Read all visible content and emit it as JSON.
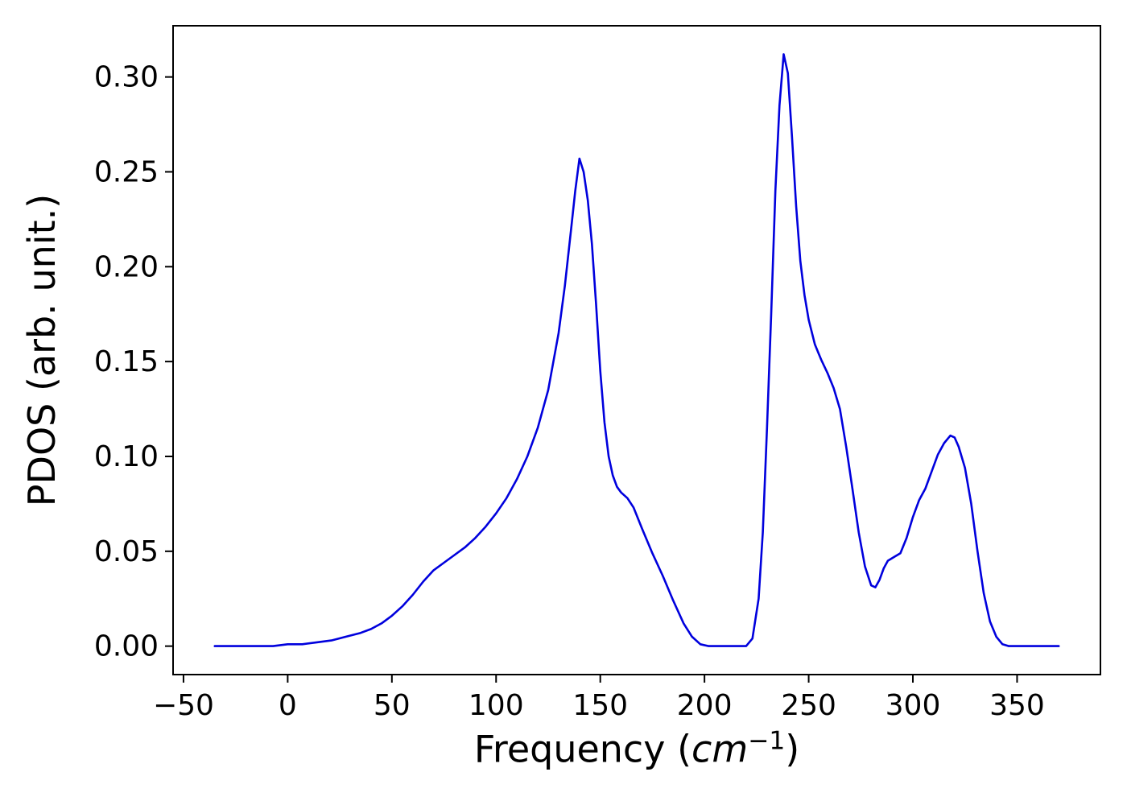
{
  "figure": {
    "ylabel_text": "PDOS (arb. unit.)",
    "xlabel_prefix": "Frequency (",
    "xlabel_italic": "cm",
    "xlabel_sup": "−1",
    "xlabel_suffix": ")"
  },
  "chart_data": {
    "type": "line",
    "title": "",
    "xlabel": "Frequency (cm^-1)",
    "ylabel": "PDOS (arb. unit.)",
    "xlim": [
      -55,
      390
    ],
    "ylim": [
      -0.015,
      0.327
    ],
    "grid": false,
    "legend": "none",
    "line_color": "#0000dd",
    "x_ticks": [
      -50,
      0,
      50,
      100,
      150,
      200,
      250,
      300,
      350
    ],
    "x_tick_labels": [
      "−50",
      "0",
      "50",
      "100",
      "150",
      "200",
      "250",
      "300",
      "350"
    ],
    "y_ticks": [
      0.0,
      0.05,
      0.1,
      0.15,
      0.2,
      0.25,
      0.3
    ],
    "y_tick_labels": [
      "0.00",
      "0.05",
      "0.10",
      "0.15",
      "0.20",
      "0.25",
      "0.30"
    ],
    "series": [
      {
        "name": "PDOS",
        "x": [
          -35,
          -28,
          -21,
          -14,
          -7,
          0,
          7,
          14,
          21,
          28,
          35,
          40,
          45,
          50,
          55,
          60,
          65,
          70,
          75,
          80,
          85,
          90,
          95,
          100,
          105,
          110,
          115,
          120,
          125,
          130,
          133,
          136,
          138,
          140,
          142,
          144,
          146,
          148,
          150,
          152,
          154,
          156,
          158,
          160,
          163,
          166,
          170,
          175,
          180,
          185,
          190,
          194,
          198,
          202,
          208,
          214,
          220,
          223,
          226,
          228,
          230,
          232,
          234,
          236,
          238,
          240,
          242,
          244,
          246,
          248,
          250,
          253,
          256,
          259,
          262,
          265,
          268,
          271,
          274,
          277,
          280,
          282,
          284,
          286,
          288,
          291,
          294,
          297,
          300,
          303,
          306,
          309,
          312,
          315,
          318,
          320,
          322,
          325,
          328,
          331,
          334,
          337,
          340,
          343,
          346,
          352,
          358,
          364,
          370
        ],
        "y": [
          0.0,
          0.0,
          0.0,
          0.0,
          0.0,
          0.001,
          0.001,
          0.002,
          0.003,
          0.005,
          0.007,
          0.009,
          0.012,
          0.016,
          0.021,
          0.027,
          0.034,
          0.04,
          0.044,
          0.048,
          0.052,
          0.057,
          0.063,
          0.07,
          0.078,
          0.088,
          0.1,
          0.115,
          0.135,
          0.165,
          0.19,
          0.22,
          0.24,
          0.257,
          0.25,
          0.235,
          0.212,
          0.18,
          0.145,
          0.118,
          0.1,
          0.09,
          0.084,
          0.081,
          0.078,
          0.073,
          0.062,
          0.049,
          0.037,
          0.024,
          0.012,
          0.005,
          0.001,
          0.0,
          0.0,
          0.0,
          0.0,
          0.004,
          0.025,
          0.06,
          0.115,
          0.175,
          0.24,
          0.285,
          0.312,
          0.302,
          0.268,
          0.232,
          0.203,
          0.185,
          0.172,
          0.159,
          0.151,
          0.144,
          0.136,
          0.125,
          0.105,
          0.083,
          0.06,
          0.042,
          0.032,
          0.031,
          0.035,
          0.041,
          0.045,
          0.047,
          0.049,
          0.057,
          0.068,
          0.077,
          0.083,
          0.092,
          0.101,
          0.107,
          0.111,
          0.11,
          0.105,
          0.094,
          0.075,
          0.05,
          0.028,
          0.013,
          0.005,
          0.001,
          0.0,
          0.0,
          0.0,
          0.0,
          0.0
        ]
      }
    ]
  }
}
